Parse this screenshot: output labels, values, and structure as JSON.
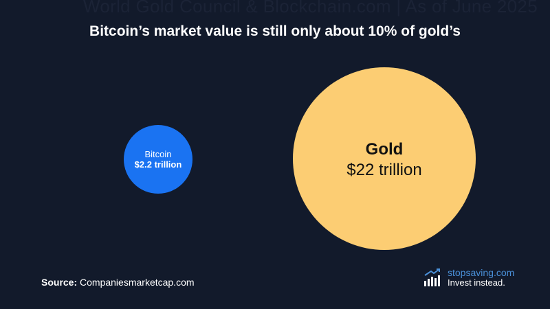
{
  "watermark": "World Gold Council & Blockchain.com | As of June 2025",
  "title": "Bitcoin’s market value is still only about 10% of gold’s",
  "chart_data": {
    "type": "bubble",
    "title": "Bitcoin’s market value is still only about 10% of gold’s",
    "unit": "trillion USD",
    "items": [
      {
        "name": "Bitcoin",
        "value": 2.2,
        "label": "$2.2 trillion",
        "color": "#1a73f2"
      },
      {
        "name": "Gold",
        "value": 22,
        "label": "$22 trillion",
        "color": "#fccd73"
      }
    ]
  },
  "source": {
    "prefix": "Source:",
    "text": " Companiesmarketcap.com"
  },
  "brand": {
    "name": "stopsaving",
    "tld": ".com",
    "tagline": "Invest instead."
  },
  "colors": {
    "background": "#121a2b",
    "bitcoin": "#1a73f2",
    "gold": "#fccd73",
    "brand_blue": "#4a90d9"
  }
}
